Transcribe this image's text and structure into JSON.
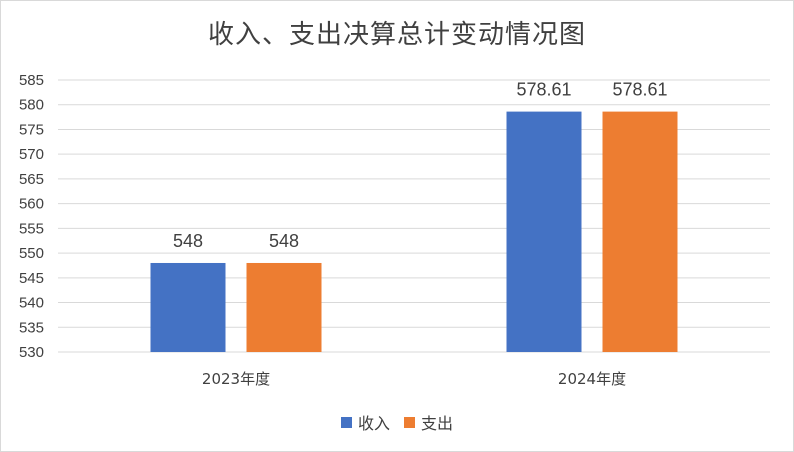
{
  "chart_data": {
    "type": "bar",
    "title": "收入、支出决算总计变动情况图",
    "categories": [
      "2023年度",
      "2024年度"
    ],
    "series": [
      {
        "name": "收入",
        "values": [
          548,
          578.61
        ],
        "labels": [
          "548",
          "578.61"
        ],
        "color": "#4472c4"
      },
      {
        "name": "支出",
        "values": [
          548,
          578.61
        ],
        "labels": [
          "548",
          "578.61"
        ],
        "color": "#ed7d31"
      }
    ],
    "ylim": [
      530,
      585
    ],
    "yticks": [
      "530",
      "535",
      "540",
      "545",
      "550",
      "555",
      "560",
      "565",
      "570",
      "575",
      "580",
      "585"
    ],
    "grid": true,
    "legend": "bottom",
    "gridColor": "#d9d9d9"
  }
}
